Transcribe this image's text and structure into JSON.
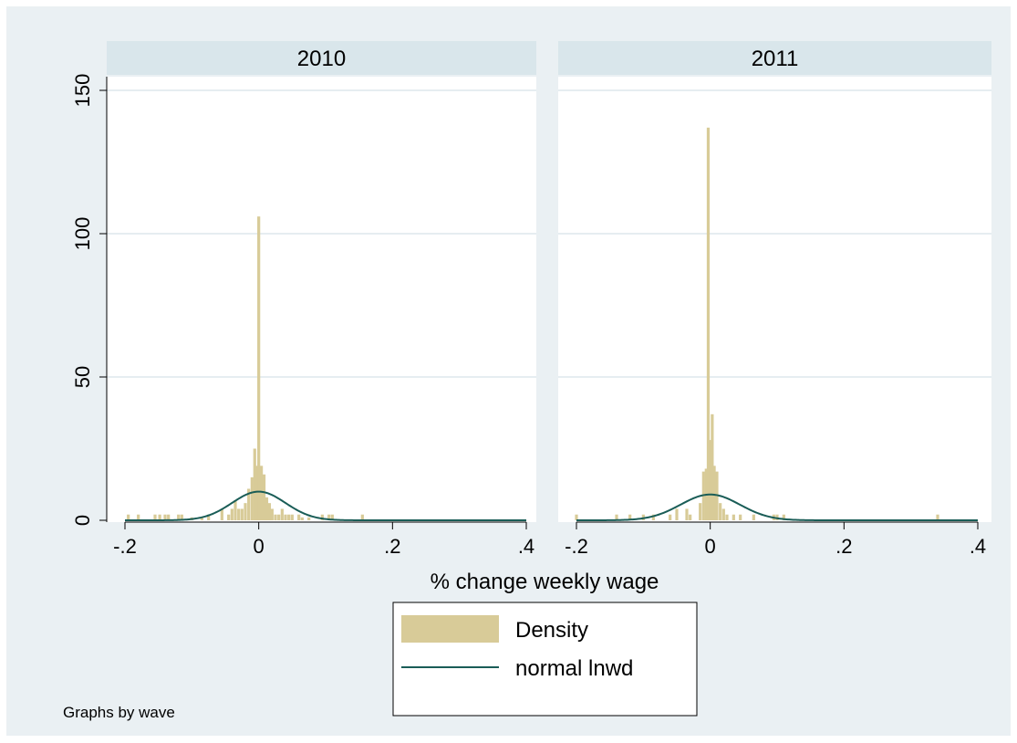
{
  "chart_data": {
    "type": "histogram",
    "xlabel": "% change weekly wage",
    "note": "Graphs by wave",
    "xlim": [
      -0.2,
      0.4
    ],
    "ylim": [
      0,
      150
    ],
    "xticks": [
      -0.2,
      0,
      0.2,
      0.4
    ],
    "xtick_labels": [
      "-.2",
      "0",
      ".2",
      ".4"
    ],
    "yticks": [
      0,
      50,
      100,
      150
    ],
    "ytick_labels": [
      "0",
      "50",
      "100",
      "150"
    ],
    "grid": true,
    "legend": {
      "placement": "bottom-center",
      "entries": [
        "Density",
        "normal lnwd"
      ]
    },
    "colors": {
      "background": "#eaf0f3",
      "plot_background": "#ffffff",
      "strip": "#d9e6eb",
      "bars": "#d8cb98",
      "line": "#1a5d57",
      "grid": "#e6edf1"
    },
    "panels": [
      {
        "title": "2010",
        "normal": {
          "mean": 0.0,
          "peak": 10
        },
        "bars": [
          {
            "x": -0.195,
            "y": 2
          },
          {
            "x": -0.18,
            "y": 2
          },
          {
            "x": -0.155,
            "y": 2
          },
          {
            "x": -0.148,
            "y": 2
          },
          {
            "x": -0.14,
            "y": 2
          },
          {
            "x": -0.135,
            "y": 2
          },
          {
            "x": -0.12,
            "y": 2
          },
          {
            "x": -0.115,
            "y": 2
          },
          {
            "x": -0.1,
            "y": 1
          },
          {
            "x": -0.085,
            "y": 1
          },
          {
            "x": -0.075,
            "y": 2
          },
          {
            "x": -0.055,
            "y": 4
          },
          {
            "x": -0.045,
            "y": 2
          },
          {
            "x": -0.04,
            "y": 4
          },
          {
            "x": -0.035,
            "y": 7
          },
          {
            "x": -0.03,
            "y": 4
          },
          {
            "x": -0.025,
            "y": 4
          },
          {
            "x": -0.02,
            "y": 6
          },
          {
            "x": -0.015,
            "y": 11
          },
          {
            "x": -0.01,
            "y": 15
          },
          {
            "x": -0.006,
            "y": 25
          },
          {
            "x": -0.003,
            "y": 19
          },
          {
            "x": 0.0,
            "y": 106
          },
          {
            "x": 0.004,
            "y": 19
          },
          {
            "x": 0.008,
            "y": 16
          },
          {
            "x": 0.012,
            "y": 8
          },
          {
            "x": 0.016,
            "y": 6
          },
          {
            "x": 0.02,
            "y": 4
          },
          {
            "x": 0.025,
            "y": 2
          },
          {
            "x": 0.03,
            "y": 2
          },
          {
            "x": 0.035,
            "y": 4
          },
          {
            "x": 0.04,
            "y": 2
          },
          {
            "x": 0.045,
            "y": 2
          },
          {
            "x": 0.05,
            "y": 2
          },
          {
            "x": 0.06,
            "y": 2
          },
          {
            "x": 0.065,
            "y": 1
          },
          {
            "x": 0.075,
            "y": 1
          },
          {
            "x": 0.095,
            "y": 2
          },
          {
            "x": 0.105,
            "y": 2
          },
          {
            "x": 0.11,
            "y": 2
          },
          {
            "x": 0.155,
            "y": 2
          }
        ]
      },
      {
        "title": "2011",
        "normal": {
          "mean": 0.0,
          "peak": 9
        },
        "bars": [
          {
            "x": -0.2,
            "y": 2
          },
          {
            "x": -0.14,
            "y": 2
          },
          {
            "x": -0.12,
            "y": 2
          },
          {
            "x": -0.1,
            "y": 2
          },
          {
            "x": -0.085,
            "y": 2
          },
          {
            "x": -0.06,
            "y": 2
          },
          {
            "x": -0.05,
            "y": 4
          },
          {
            "x": -0.035,
            "y": 4
          },
          {
            "x": -0.03,
            "y": 2
          },
          {
            "x": -0.015,
            "y": 6
          },
          {
            "x": -0.01,
            "y": 17
          },
          {
            "x": -0.006,
            "y": 18
          },
          {
            "x": -0.003,
            "y": 137
          },
          {
            "x": 0.0,
            "y": 28
          },
          {
            "x": 0.003,
            "y": 37
          },
          {
            "x": 0.006,
            "y": 19
          },
          {
            "x": 0.01,
            "y": 17
          },
          {
            "x": 0.015,
            "y": 6
          },
          {
            "x": 0.02,
            "y": 4
          },
          {
            "x": 0.025,
            "y": 2
          },
          {
            "x": 0.035,
            "y": 2
          },
          {
            "x": 0.045,
            "y": 2
          },
          {
            "x": 0.065,
            "y": 2
          },
          {
            "x": 0.095,
            "y": 2
          },
          {
            "x": 0.1,
            "y": 2
          },
          {
            "x": 0.11,
            "y": 2
          },
          {
            "x": 0.34,
            "y": 2
          }
        ]
      }
    ]
  }
}
